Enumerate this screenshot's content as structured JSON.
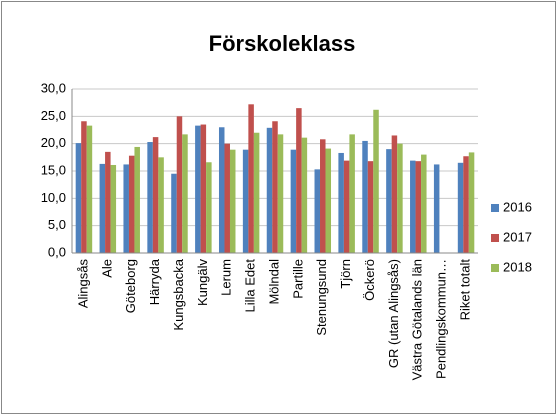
{
  "chart_data": {
    "type": "bar",
    "title": "Förskoleklass",
    "categories": [
      "Alingsås",
      "Ale",
      "Göteborg",
      "Härryda",
      "Kungsbacka",
      "Kungälv",
      "Lerum",
      "Lilla Edet",
      "Mölndal",
      "Partille",
      "Stenungsund",
      "Tjörn",
      "Öckerö",
      "GR (utan Alingsås)",
      "Västra Götalands län",
      "Pendlingskommun…",
      "Riket totalt"
    ],
    "series": [
      {
        "name": "2016",
        "color": "#4f81bd",
        "values": [
          20.1,
          16.3,
          16.2,
          20.3,
          14.5,
          23.3,
          23.0,
          18.9,
          22.9,
          18.9,
          15.3,
          18.3,
          20.5,
          19.0,
          16.9,
          16.2,
          16.5
        ]
      },
      {
        "name": "2017",
        "color": "#c0504d",
        "values": [
          24.1,
          18.5,
          17.8,
          21.2,
          25.0,
          23.5,
          20.0,
          27.2,
          24.1,
          26.5,
          20.8,
          16.9,
          16.8,
          21.5,
          16.8,
          null,
          17.7
        ]
      },
      {
        "name": "2018",
        "color": "#9bbb59",
        "values": [
          23.3,
          16.1,
          19.4,
          17.5,
          21.7,
          16.6,
          18.9,
          22.0,
          21.7,
          21.1,
          19.1,
          21.7,
          26.2,
          20.0,
          18.0,
          null,
          18.4
        ]
      }
    ],
    "ylim": [
      0,
      30
    ],
    "yticks": [
      {
        "value": 0,
        "label": "0,0"
      },
      {
        "value": 5,
        "label": "5,0"
      },
      {
        "value": 10,
        "label": "10,0"
      },
      {
        "value": 15,
        "label": "15,0"
      },
      {
        "value": 20,
        "label": "20,0"
      },
      {
        "value": 25,
        "label": "25,0"
      },
      {
        "value": 30,
        "label": "30,0"
      }
    ],
    "grid": true,
    "legend": "right"
  }
}
